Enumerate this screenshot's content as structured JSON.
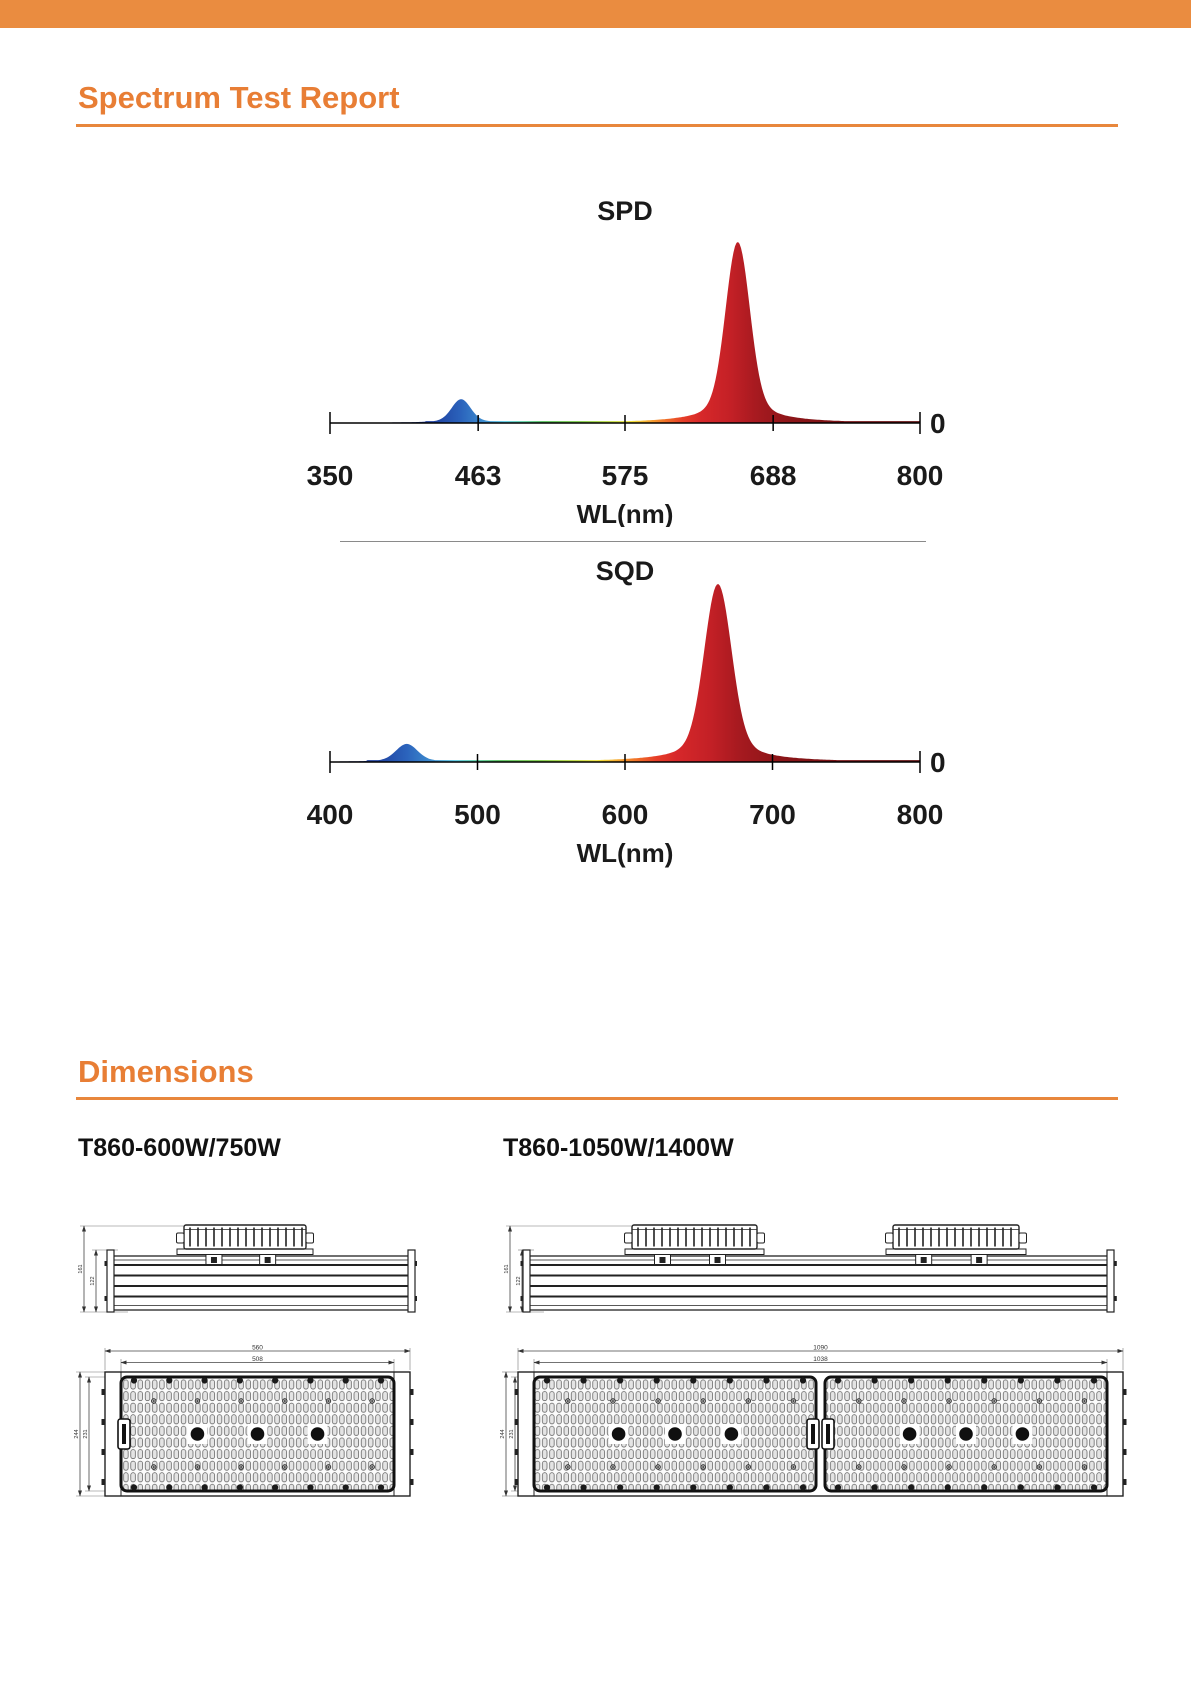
{
  "page": {
    "background": "#FFFFFF",
    "accent_orange": "#E8823B",
    "header_bar_color": "#EA8C40"
  },
  "spectrum_section": {
    "title": "Spectrum Test Report"
  },
  "dimensions_section": {
    "title": "Dimensions",
    "models": [
      {
        "label": "T860-600W/750W",
        "side_view": {
          "overall_height": "161",
          "body_height": "122"
        },
        "bottom_view": {
          "overall_width": "560",
          "inner_width": "508",
          "overall_depth": "244",
          "inner_depth": "231"
        }
      },
      {
        "label": "T860-1050W/1400W",
        "side_view": {
          "overall_height": "161",
          "body_height": "122"
        },
        "bottom_view": {
          "overall_width": "1090",
          "inner_width": "1038",
          "overall_depth": "244",
          "inner_depth": "231"
        }
      }
    ]
  },
  "chart_data": [
    {
      "type": "area",
      "title": "SPD",
      "xlabel": "WL(nm)",
      "y_zero_label": "0",
      "x_range": [
        350,
        800
      ],
      "x_ticks": [
        350,
        463,
        575,
        688,
        800
      ],
      "peaks": [
        {
          "name": "blue-peak",
          "center": 450,
          "sigma": 7,
          "height": 0.13
        },
        {
          "name": "red-peak",
          "center": 661,
          "sigma": 9,
          "height": 1.0
        }
      ],
      "gradient": [
        {
          "nm": 350,
          "color": "#2A2A7A"
        },
        {
          "nm": 428,
          "color": "#1E3F9E"
        },
        {
          "nm": 450,
          "color": "#2B63BC"
        },
        {
          "nm": 468,
          "color": "#3E8FD0"
        },
        {
          "nm": 483,
          "color": "#55C8E2"
        },
        {
          "nm": 498,
          "color": "#57CF9E"
        },
        {
          "nm": 512,
          "color": "#4FBE58"
        },
        {
          "nm": 542,
          "color": "#7CCB3F"
        },
        {
          "nm": 566,
          "color": "#C4DC3A"
        },
        {
          "nm": 580,
          "color": "#F2E23A"
        },
        {
          "nm": 593,
          "color": "#F5A82E"
        },
        {
          "nm": 606,
          "color": "#F07028"
        },
        {
          "nm": 619,
          "color": "#E63E28"
        },
        {
          "nm": 633,
          "color": "#D7282A"
        },
        {
          "nm": 656,
          "color": "#C32026"
        },
        {
          "nm": 674,
          "color": "#A81A20"
        },
        {
          "nm": 702,
          "color": "#8C1518"
        },
        {
          "nm": 800,
          "color": "#5E0F10"
        }
      ]
    },
    {
      "type": "area",
      "title": "SQD",
      "xlabel": "WL(nm)",
      "y_zero_label": "0",
      "x_range": [
        400,
        800
      ],
      "x_ticks": [
        400,
        500,
        600,
        700,
        800
      ],
      "peaks": [
        {
          "name": "blue-peak",
          "center": 452,
          "sigma": 7,
          "height": 0.1
        },
        {
          "name": "red-peak",
          "center": 663,
          "sigma": 9,
          "height": 1.0
        }
      ],
      "gradient": [
        {
          "nm": 400,
          "color": "#23307E"
        },
        {
          "nm": 430,
          "color": "#1E3F9E"
        },
        {
          "nm": 452,
          "color": "#2B63BC"
        },
        {
          "nm": 470,
          "color": "#3E8FD0"
        },
        {
          "nm": 485,
          "color": "#55C8E2"
        },
        {
          "nm": 500,
          "color": "#57CF9E"
        },
        {
          "nm": 514,
          "color": "#4FBE58"
        },
        {
          "nm": 544,
          "color": "#7CCB3F"
        },
        {
          "nm": 568,
          "color": "#C4DC3A"
        },
        {
          "nm": 582,
          "color": "#F2E23A"
        },
        {
          "nm": 595,
          "color": "#F5A82E"
        },
        {
          "nm": 608,
          "color": "#F07028"
        },
        {
          "nm": 621,
          "color": "#E63E28"
        },
        {
          "nm": 635,
          "color": "#D7282A"
        },
        {
          "nm": 658,
          "color": "#C32026"
        },
        {
          "nm": 676,
          "color": "#A81A20"
        },
        {
          "nm": 704,
          "color": "#8C1518"
        },
        {
          "nm": 800,
          "color": "#5E0F10"
        }
      ]
    }
  ]
}
